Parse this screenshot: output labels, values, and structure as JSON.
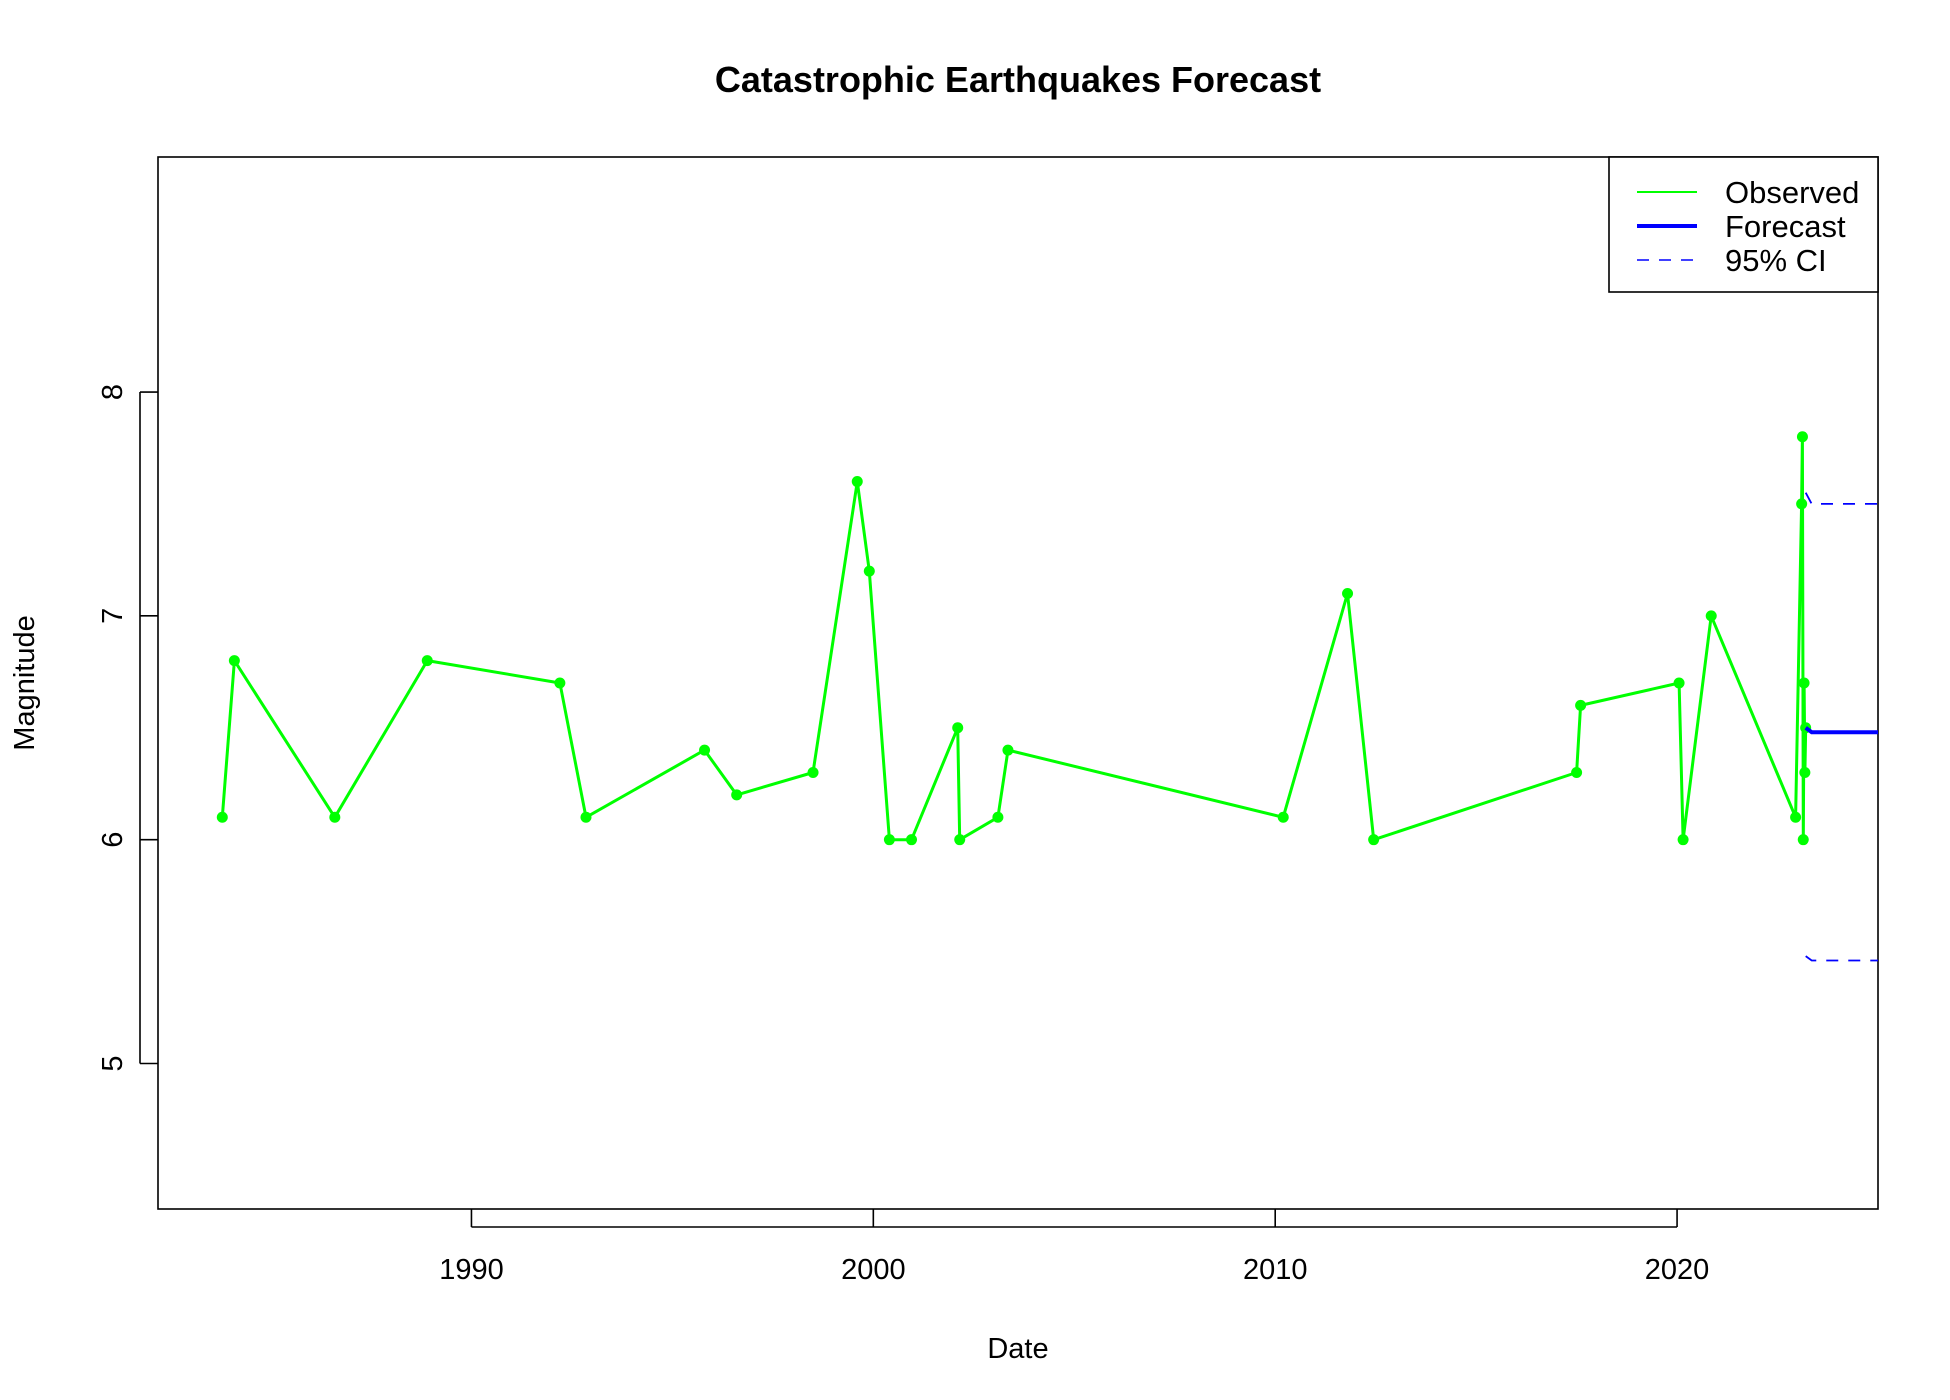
{
  "chart_data": {
    "type": "line",
    "title": "Catastrophic Earthquakes Forecast",
    "xlabel": "Date",
    "ylabel": "Magnitude",
    "xlim": [
      1982.2,
      2025.0
    ],
    "ylim": [
      4.35,
      9.05
    ],
    "xticks": [
      1990,
      2000,
      2010,
      2020
    ],
    "yticks": [
      5,
      6,
      7,
      8
    ],
    "grid": false,
    "legend_position": "top-right",
    "colors": {
      "observed": "#00ff00",
      "forecast": "#0000ff",
      "ci": "#0000ff"
    },
    "series": [
      {
        "name": "Observed",
        "style": "line-with-points",
        "x": [
          1983.8,
          1984.1,
          1986.6,
          1988.9,
          1992.2,
          1992.85,
          1995.8,
          1996.6,
          1998.5,
          1999.6,
          1999.9,
          2000.4,
          2000.95,
          2002.1,
          2002.15,
          2003.1,
          2003.35,
          2010.2,
          2011.8,
          2012.45,
          2017.5,
          2017.6,
          2020.05,
          2020.15,
          2020.85,
          2022.95,
          2023.1,
          2023.12,
          2023.14,
          2023.16,
          2023.18,
          2023.2
        ],
        "y": [
          6.1,
          6.8,
          6.1,
          6.8,
          6.7,
          6.1,
          6.4,
          6.2,
          6.3,
          7.6,
          7.2,
          6.0,
          6.0,
          6.5,
          6.0,
          6.1,
          6.4,
          6.1,
          7.1,
          6.0,
          6.3,
          6.6,
          6.7,
          6.0,
          7.0,
          6.1,
          7.5,
          7.8,
          6.0,
          6.7,
          6.3,
          6.5
        ]
      },
      {
        "name": "Forecast",
        "style": "solid",
        "x": [
          2023.2,
          2023.35,
          2025.0
        ],
        "y": [
          6.5,
          6.48,
          6.48
        ]
      },
      {
        "name": "95% CI",
        "style": "dashed",
        "upper": {
          "x": [
            2023.2,
            2023.35,
            2025.0
          ],
          "y": [
            7.55,
            7.5,
            7.5
          ]
        },
        "lower": {
          "x": [
            2023.2,
            2023.35,
            2025.0
          ],
          "y": [
            5.48,
            5.46,
            5.46
          ]
        }
      }
    ],
    "legend": [
      "Observed",
      "Forecast",
      "95% CI"
    ]
  }
}
